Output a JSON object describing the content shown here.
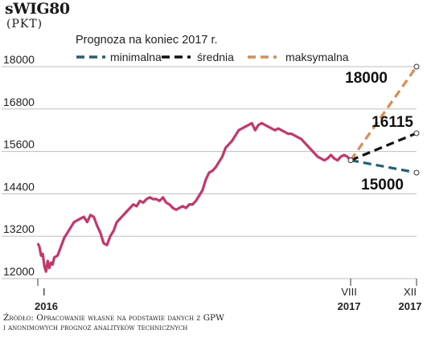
{
  "header": {
    "title": "sWIG80",
    "unit": "(PKT)"
  },
  "source": {
    "line1": "Źródło: Opracowanie własne na podstawie danych z GPW",
    "line2": "i anonimowych prognoz analityków technicznych"
  },
  "colors": {
    "history": "#c8356b",
    "minimalna": "#1f5f7a",
    "srednia": "#111111",
    "maksymalna": "#e08a4f",
    "grid": "#bdbdbd"
  },
  "chart_data": {
    "type": "line",
    "ylim": [
      12000,
      18000
    ],
    "yticks": [
      12000,
      13200,
      14400,
      15600,
      16800,
      18000
    ],
    "x_labels": [
      {
        "key": "jan2016",
        "top": "I",
        "bottom": "2016"
      },
      {
        "key": "aug2017",
        "top": "VIII",
        "bottom": "2017"
      },
      {
        "key": "dec2017",
        "top": "XII",
        "bottom": "2017"
      }
    ],
    "legend": {
      "title": "Prognoza na koniec 2017 r.",
      "entries": [
        "minimalna",
        "średnia",
        "maksymalna"
      ]
    },
    "history": {
      "name": "sWIG80",
      "x_months": [
        0,
        0.1,
        0.2,
        0.3,
        0.4,
        0.5,
        0.6,
        0.7,
        0.8,
        0.9,
        1.0,
        1.2,
        1.4,
        1.6,
        1.8,
        2.0,
        2.2,
        2.4,
        2.6,
        2.8,
        3.0,
        3.2,
        3.4,
        3.6,
        3.8,
        4.0,
        4.2,
        4.4,
        4.6,
        4.8,
        5.0,
        5.2,
        5.4,
        5.6,
        5.8,
        6.0,
        6.2,
        6.4,
        6.6,
        6.8,
        7.0,
        7.2,
        7.4,
        7.6,
        7.8,
        8.0,
        8.2,
        8.4,
        8.6,
        8.8,
        9.0,
        9.2,
        9.4,
        9.6,
        9.8,
        10.0,
        10.2,
        10.4,
        10.6,
        10.8,
        11.0,
        11.2,
        11.4,
        11.6,
        11.8,
        12.0,
        12.2,
        12.4,
        12.6,
        12.8,
        13.0,
        13.2,
        13.4,
        13.6,
        13.8,
        14.0,
        14.2,
        14.4,
        14.6,
        14.8,
        15.0,
        15.2,
        15.4,
        15.6,
        15.8,
        16.0,
        16.2,
        16.4,
        16.6,
        16.8,
        17.0,
        17.2,
        17.4,
        17.6,
        17.8,
        18.0,
        18.2,
        18.4,
        18.6,
        18.8,
        19.0
      ],
      "values": [
        13000,
        12900,
        12650,
        12700,
        12350,
        12200,
        12500,
        12300,
        12450,
        12400,
        12600,
        12650,
        12900,
        13150,
        13300,
        13450,
        13600,
        13650,
        13700,
        13750,
        13600,
        13800,
        13750,
        13500,
        13300,
        13000,
        12950,
        13200,
        13350,
        13600,
        13700,
        13800,
        13900,
        14000,
        14100,
        14050,
        14200,
        14150,
        14250,
        14300,
        14250,
        14250,
        14200,
        14300,
        14150,
        14100,
        14000,
        13950,
        14000,
        14050,
        14000,
        14100,
        14100,
        14200,
        14350,
        14500,
        14800,
        15000,
        15050,
        15150,
        15300,
        15450,
        15700,
        15800,
        15900,
        16050,
        16200,
        16250,
        16300,
        16350,
        16400,
        16200,
        16350,
        16400,
        16350,
        16300,
        16250,
        16200,
        16250,
        16200,
        16150,
        16100,
        16100,
        16050,
        16000,
        15950,
        15850,
        15750,
        15650,
        15550,
        15450,
        15400,
        15350,
        15400,
        15500,
        15400,
        15350,
        15450,
        15500,
        15450,
        15350
      ]
    },
    "forecast": {
      "start": {
        "x_months": 19,
        "value": 15350
      },
      "end_x_months": 23,
      "series": [
        {
          "name": "minimalna",
          "value": 15000,
          "label": "15000"
        },
        {
          "name": "średnia",
          "value": 16115,
          "label": "16115"
        },
        {
          "name": "maksymalna",
          "value": 18000,
          "label": "18000"
        }
      ]
    }
  }
}
